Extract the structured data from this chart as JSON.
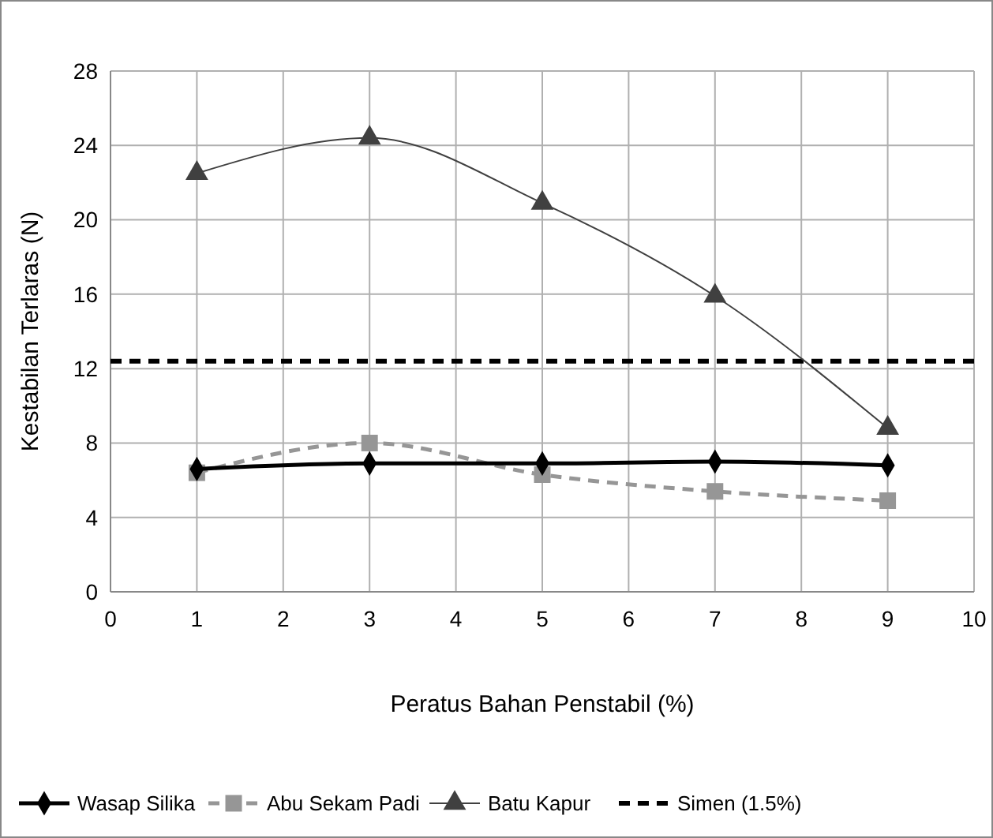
{
  "chart_data": {
    "type": "line",
    "xlabel": "Peratus Bahan Penstabil (%)",
    "ylabel": "Kestabilan Terlaras (N)",
    "x": [
      1,
      3,
      5,
      7,
      9
    ],
    "xlim": [
      0,
      10
    ],
    "xticks": [
      0,
      1,
      2,
      3,
      4,
      5,
      6,
      7,
      8,
      9,
      10
    ],
    "ylim": [
      0,
      28
    ],
    "yticks": [
      0,
      4,
      8,
      12,
      16,
      20,
      24,
      28
    ],
    "grid": true,
    "legend": "bottom",
    "series": [
      {
        "name": "Wasap Silika",
        "color": "#000000",
        "values": [
          6.6,
          6.9,
          6.9,
          7.0,
          6.8
        ],
        "marker": "diamond",
        "line_style": "solid"
      },
      {
        "name": "Abu Sekam Padi",
        "color": "#969696",
        "values": [
          6.4,
          8.0,
          6.3,
          5.4,
          4.9
        ],
        "marker": "square",
        "line_style": "dashed"
      },
      {
        "name": "Batu Kapur",
        "color": "#404040",
        "values": [
          22.5,
          24.4,
          20.9,
          15.9,
          8.8
        ],
        "marker": "triangle",
        "line_style": "solid"
      },
      {
        "name": "Simen (1.5%)",
        "color": "#000000",
        "x": [
          0,
          10
        ],
        "values": [
          12.4,
          12.4
        ],
        "marker": "none",
        "line_style": "dashed"
      }
    ]
  }
}
